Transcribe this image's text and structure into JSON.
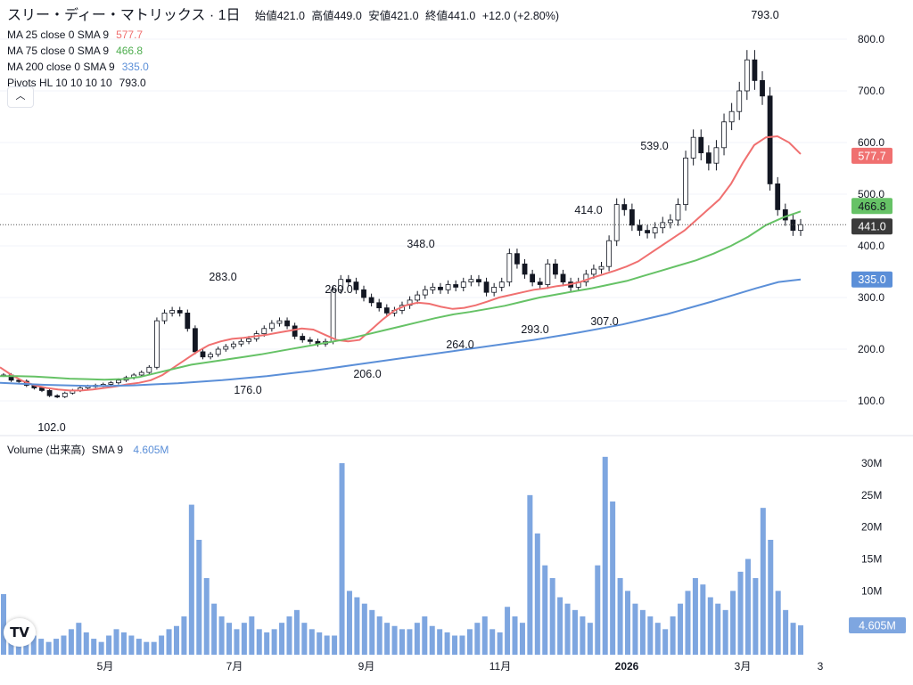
{
  "legend": {
    "symbol": "スリー・ディー・マトリックス · 1日",
    "open_label": "始値",
    "open": "421.0",
    "high_label": "高値",
    "high": "449.0",
    "low_label": "安値",
    "low": "421.0",
    "close_label": "終値",
    "close": "441.0",
    "change": "+12.0 (+2.80%)",
    "ma25_label": "MA 25 close 0 SMA 9",
    "ma25_value": "577.7",
    "ma75_label": "MA 75 close 0 SMA 9",
    "ma75_value": "466.8",
    "ma200_label": "MA 200 close 0 SMA 9",
    "ma200_value": "335.0",
    "pivots_label": "Pivots HL 10 10 10 10",
    "pivots_value": "793.0",
    "collapse_icon": "chevron-up-icon"
  },
  "volume_legend": {
    "label": "Volume (出来高)",
    "sma": "SMA 9",
    "value": "4.605M"
  },
  "colors": {
    "ma25": "#f07070",
    "ma75": "#66c266",
    "ma200": "#5b8fd8",
    "volume": "#7ea6e0",
    "candle": "#131722",
    "price_badge": "#3a3a3a"
  },
  "chart_data": {
    "type": "line",
    "price_axis": {
      "ticks": [
        100,
        200,
        300,
        400,
        500,
        600,
        700,
        800
      ],
      "range": [
        40,
        840
      ]
    },
    "volume_axis": {
      "ticks": [
        "10M",
        "15M",
        "20M",
        "25M",
        "30M"
      ],
      "range": [
        0,
        32
      ]
    },
    "time_axis": [
      "5月",
      "7月",
      "9月",
      "11月",
      "2026",
      "3月",
      "3"
    ],
    "pivot_labels": [
      {
        "label": "102.0",
        "date": "4月中旬",
        "kind": "low"
      },
      {
        "label": "283.0",
        "date": "6月下旬",
        "kind": "high"
      },
      {
        "label": "176.0",
        "date": "7月上旬",
        "kind": "low"
      },
      {
        "label": "260.0",
        "date": "8月下旬",
        "kind": "high"
      },
      {
        "label": "206.0",
        "date": "9月中旬",
        "kind": "low"
      },
      {
        "label": "348.0",
        "date": "9月下旬",
        "kind": "high"
      },
      {
        "label": "264.0",
        "date": "10月下旬",
        "kind": "low"
      },
      {
        "label": "293.0",
        "date": "11月下旬",
        "kind": "low"
      },
      {
        "label": "414.0",
        "date": "12月中旬",
        "kind": "high"
      },
      {
        "label": "307.0",
        "date": "12月中旬",
        "kind": "low"
      },
      {
        "label": "539.0",
        "date": "1月中旬",
        "kind": "high"
      },
      {
        "label": "793.0",
        "date": "3月上旬",
        "kind": "high"
      }
    ],
    "price_close_series": [
      150,
      140,
      138,
      130,
      125,
      120,
      110,
      108,
      115,
      120,
      125,
      128,
      130,
      132,
      135,
      140,
      145,
      150,
      155,
      165,
      255,
      270,
      275,
      270,
      240,
      195,
      185,
      190,
      200,
      205,
      210,
      215,
      220,
      230,
      240,
      250,
      255,
      245,
      225,
      218,
      215,
      210,
      215,
      315,
      335,
      330,
      315,
      300,
      290,
      280,
      270,
      275,
      285,
      295,
      305,
      315,
      320,
      315,
      325,
      320,
      330,
      335,
      330,
      310,
      320,
      330,
      385,
      365,
      345,
      330,
      325,
      365,
      345,
      330,
      320,
      330,
      345,
      355,
      360,
      410,
      480,
      470,
      440,
      430,
      425,
      435,
      445,
      450,
      480,
      570,
      610,
      580,
      560,
      590,
      640,
      660,
      700,
      760,
      720,
      690,
      520,
      470,
      450,
      430,
      441
    ],
    "series": [
      {
        "name": "MA 25 close 0 SMA 9",
        "last": 577.7,
        "values": [
          165,
          150,
          138,
          130,
          125,
          122,
          120,
          120,
          122,
          125,
          128,
          132,
          135,
          140,
          150,
          165,
          180,
          195,
          208,
          215,
          220,
          222,
          225,
          228,
          232,
          236,
          240,
          238,
          228,
          218,
          215,
          218,
          238,
          258,
          275,
          285,
          290,
          288,
          282,
          278,
          280,
          285,
          292,
          300,
          305,
          310,
          315,
          318,
          322,
          325,
          330,
          338,
          345,
          352,
          360,
          370,
          385,
          400,
          415,
          430,
          450,
          470,
          490,
          520,
          560,
          595,
          610,
          612,
          600,
          577.7
        ],
        "drawn_from": 0
      },
      {
        "name": "MA 75 close 0 SMA 9",
        "last": 466.8,
        "values": [
          148,
          148,
          147,
          145,
          143,
          142,
          141,
          142,
          146,
          154,
          162,
          170,
          175,
          180,
          185,
          190,
          196,
          202,
          208,
          214,
          220,
          228,
          236,
          244,
          252,
          260,
          267,
          272,
          278,
          284,
          292,
          300,
          306,
          312,
          318,
          325,
          332,
          342,
          352,
          362,
          372,
          385,
          400,
          418,
          440,
          455,
          466.8
        ]
      },
      {
        "name": "MA 200 close 0 SMA 9",
        "last": 335.0,
        "values": [
          135,
          133,
          131,
          130,
          129,
          129,
          130,
          132,
          134,
          137,
          140,
          144,
          148,
          153,
          158,
          164,
          170,
          176,
          182,
          188,
          194,
          200,
          206,
          212,
          218,
          225,
          232,
          240,
          248,
          258,
          268,
          280,
          292,
          305,
          318,
          330,
          335
        ]
      }
    ],
    "volume_values": [
      9.5,
      5,
      4,
      3.5,
      3,
      2.5,
      2,
      2.5,
      3,
      4,
      5,
      3.5,
      2.5,
      2,
      3,
      4,
      3.5,
      3,
      2.5,
      2,
      2,
      3,
      4,
      4.5,
      6,
      23.5,
      18,
      12,
      8,
      6,
      5,
      4,
      5,
      6,
      4,
      3.5,
      4,
      5,
      6,
      7,
      5,
      4,
      3.5,
      3,
      3,
      30,
      10,
      9,
      8,
      7,
      6,
      5,
      4.5,
      4,
      4,
      5,
      6,
      4.5,
      4,
      3.5,
      3,
      3,
      4,
      5,
      6,
      4,
      3.5,
      7.5,
      6,
      5,
      25,
      19,
      14,
      12,
      9,
      8,
      7,
      6,
      5,
      14,
      31,
      24,
      12,
      10,
      8,
      7,
      6,
      5,
      4,
      6,
      8,
      10,
      12,
      11,
      9,
      8,
      7,
      10,
      13,
      15,
      12,
      23,
      18,
      10,
      7,
      5,
      4.6
    ],
    "last_price": 441.0
  }
}
